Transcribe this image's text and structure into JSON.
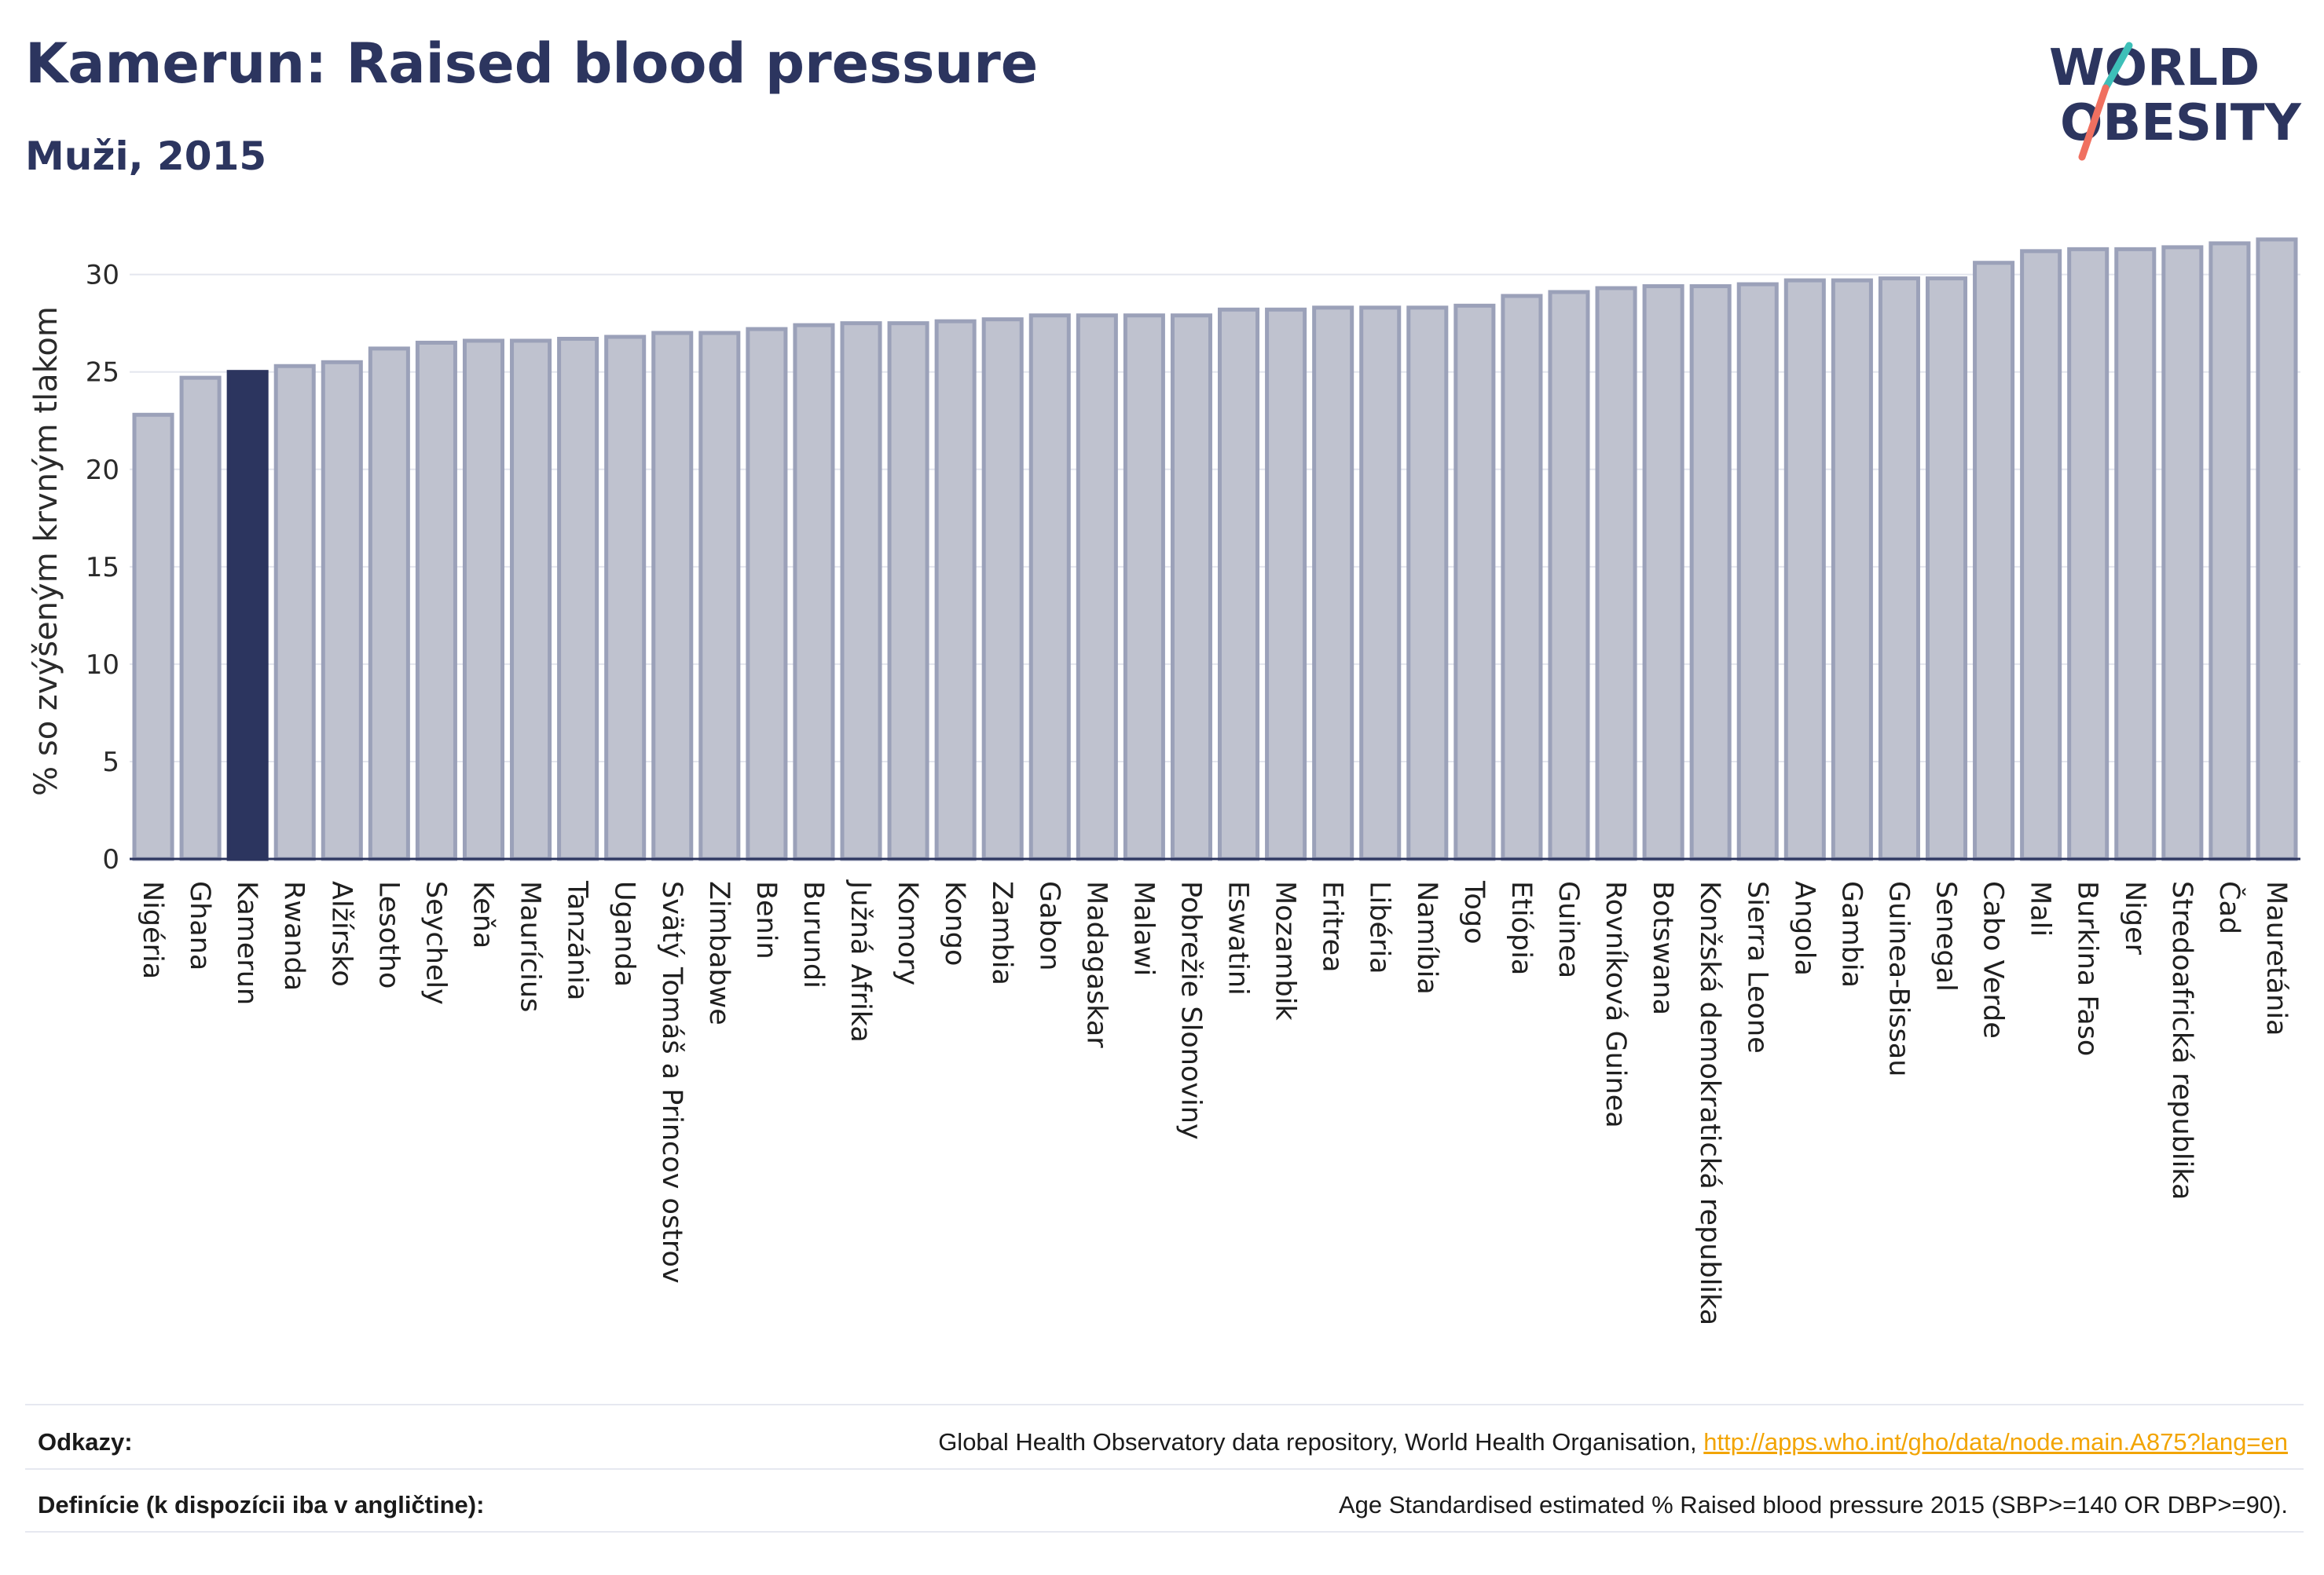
{
  "header": {
    "title": "Kamerun: Raised blood pressure",
    "subtitle": "Muži, 2015",
    "logo_line1": "WORLD",
    "logo_line2": "OBESITY"
  },
  "chart_data": {
    "type": "bar",
    "ylabel": "% so zvýšeným krvným tlakom",
    "ylim": [
      0,
      32
    ],
    "yticks": [
      0,
      5,
      10,
      15,
      20,
      25,
      30
    ],
    "grid": true,
    "highlight": "Kamerun",
    "colors": {
      "bar": "#bfc2cf",
      "bar_border": "#9ba1b9",
      "highlight": "#2c355f",
      "axis": "#2c355f",
      "grid": "#e4e6ee"
    },
    "categories": [
      "Nigéria",
      "Ghana",
      "Kamerun",
      "Rwanda",
      "Alžírsko",
      "Lesotho",
      "Seychely",
      "Keňa",
      "Maurícius",
      "Tanzánia",
      "Uganda",
      "Svätý Tomáš a Princov ostrov",
      "Zimbabwe",
      "Benin",
      "Burundi",
      "Južná Afrika",
      "Komory",
      "Kongo",
      "Zambia",
      "Gabon",
      "Madagaskar",
      "Malawi",
      "Pobrežie Slonoviny",
      "Eswatini",
      "Mozambik",
      "Eritrea",
      "Libéria",
      "Namíbia",
      "Togo",
      "Etiópia",
      "Guinea",
      "Rovníková Guinea",
      "Botswana",
      "Konžská demokratická republika",
      "Sierra Leone",
      "Angola",
      "Gambia",
      "Guinea-Bissau",
      "Senegal",
      "Cabo Verde",
      "Mali",
      "Burkina Faso",
      "Niger",
      "Stredoafrická republika",
      "Čad",
      "Mauretánia"
    ],
    "values": [
      22.8,
      24.7,
      25.0,
      25.3,
      25.5,
      26.2,
      26.5,
      26.6,
      26.6,
      26.7,
      26.8,
      27.0,
      27.0,
      27.2,
      27.4,
      27.5,
      27.5,
      27.6,
      27.7,
      27.9,
      27.9,
      27.9,
      27.9,
      28.2,
      28.2,
      28.3,
      28.3,
      28.3,
      28.4,
      28.9,
      29.1,
      29.3,
      29.4,
      29.4,
      29.5,
      29.7,
      29.7,
      29.8,
      29.8,
      30.6,
      31.2,
      31.3,
      31.3,
      31.4,
      31.6,
      31.8
    ]
  },
  "footer": {
    "refs_label": "Odkazy:",
    "refs_text": "Global Health Observatory data repository, World Health Organisation, ",
    "refs_link": "http://apps.who.int/gho/data/node.main.A875?lang=en",
    "def_label": "Definície (k dispozícii iba v angličtine):",
    "def_text": "Age Standardised estimated % Raised blood pressure 2015 (SBP>=140 OR DBP>=90)."
  }
}
